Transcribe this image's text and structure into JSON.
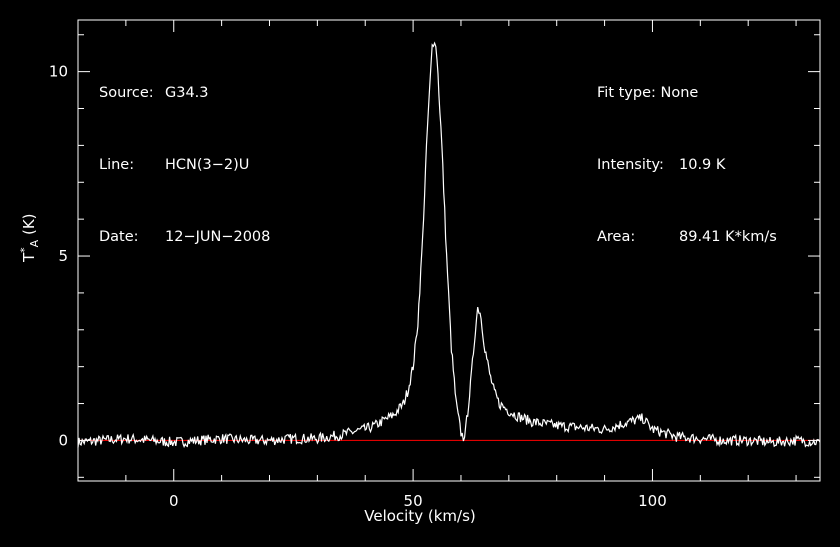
{
  "header_left": {
    "source_label": "Source:",
    "source": "G34.3",
    "line_label": "Line:",
    "line": "HCN(3−2)U",
    "date_label": "Date:",
    "date": "12−JUN−2008"
  },
  "header_right": {
    "fit_label": "Fit type:",
    "fit": "None",
    "intensity_label": "Intensity:",
    "intensity": "10.9 K",
    "area_label": "Area:",
    "area": "89.41 K*km/s"
  },
  "chart_data": {
    "type": "line",
    "xlabel": "Velocity (km/s)",
    "ylabel_main": "T",
    "ylabel_sub": "A",
    "ylabel_sup": "*",
    "ylabel_unit": "(K)",
    "xlim": [
      -20,
      135
    ],
    "ylim": [
      -1.1,
      11.4
    ],
    "xticks": [
      0,
      50,
      100
    ],
    "yticks": [
      0,
      5,
      10
    ],
    "baseline": 0,
    "colors": {
      "spectrum": "#ffffff",
      "baseline": "#ff0000",
      "axes": "#ffffff"
    },
    "series": [
      {
        "x": [
          -20,
          -15,
          -10,
          -5,
          0,
          5,
          10,
          15,
          20,
          25,
          30,
          35,
          38,
          40,
          42,
          44,
          46,
          48,
          49,
          50,
          51,
          52,
          53,
          54,
          54.5,
          55,
          56,
          57,
          58,
          59,
          60,
          60.5,
          61,
          62,
          63,
          63.5,
          64,
          65,
          66,
          67,
          68,
          70,
          72,
          75,
          80,
          85,
          90,
          95,
          98,
          100,
          105,
          110,
          115,
          120,
          125,
          130,
          135
        ],
        "y": [
          -0.05,
          0,
          0.05,
          0,
          -0.05,
          0,
          0.05,
          0,
          0,
          0.05,
          0.05,
          0.15,
          0.25,
          0.3,
          0.4,
          0.55,
          0.7,
          1.0,
          1.4,
          2.0,
          3.2,
          5.5,
          8.5,
          10.7,
          10.9,
          10.4,
          8.0,
          5.0,
          2.5,
          1.0,
          0.2,
          0.08,
          0.3,
          1.5,
          3.0,
          3.6,
          3.5,
          2.5,
          1.8,
          1.3,
          1.0,
          0.8,
          0.65,
          0.5,
          0.4,
          0.35,
          0.3,
          0.5,
          0.6,
          0.3,
          0.1,
          0.05,
          0,
          0,
          -0.05,
          0,
          -0.05
        ]
      }
    ]
  }
}
